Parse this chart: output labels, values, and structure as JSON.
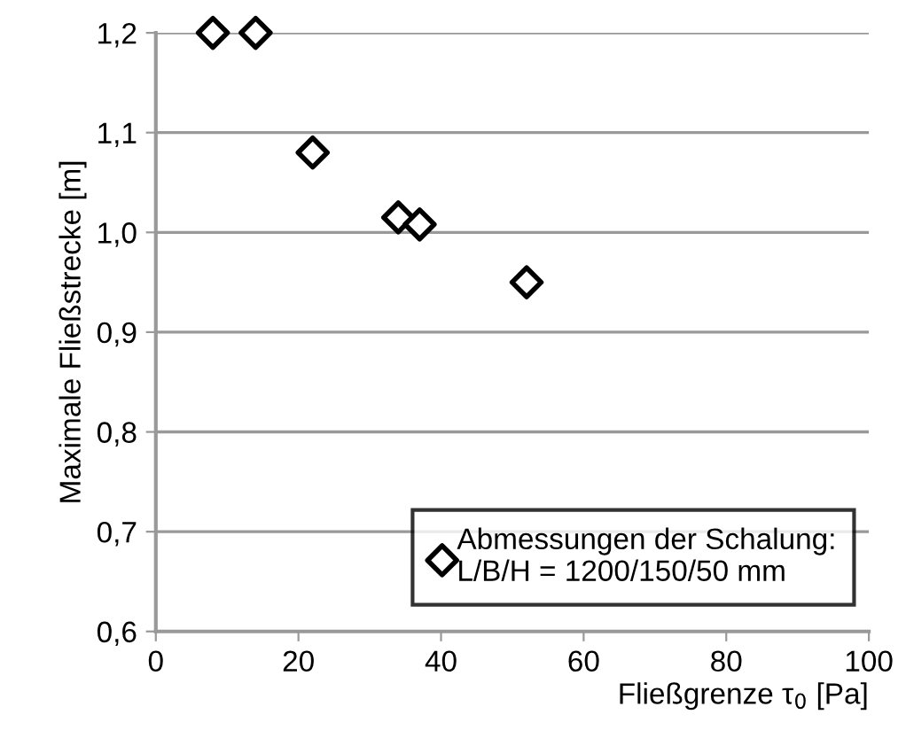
{
  "chart_data": {
    "type": "scatter",
    "xlabel": "Fließgrenze τ$_{0}$ [Pa]",
    "ylabel": "Maximale Fließstrecke [m]",
    "x": [
      8,
      14,
      22,
      34,
      37,
      52
    ],
    "series": [
      {
        "name": "Abmessungen der Schalung:\nL/B/H = 1200/150/50 mm",
        "color": "#000000",
        "values": [
          1.2,
          1.2,
          1.08,
          1.015,
          1.008,
          0.95
        ]
      }
    ],
    "marker": "diamond",
    "xlim": [
      0,
      100
    ],
    "xticks": [
      0,
      20,
      40,
      60,
      80,
      100
    ],
    "ylim": [
      0.6,
      1.2
    ],
    "yticks": [
      {
        "value": 0.6,
        "label": "0,6"
      },
      {
        "value": 0.7,
        "label": "0,7"
      },
      {
        "value": 0.8,
        "label": "0,8"
      },
      {
        "value": 0.9,
        "label": "0,9"
      },
      {
        "value": 1.0,
        "label": "1,0"
      },
      {
        "value": 1.1,
        "label": "1,1"
      },
      {
        "value": 1.2,
        "label": "1,2"
      }
    ],
    "grid": "y",
    "legend": "bottom right"
  }
}
